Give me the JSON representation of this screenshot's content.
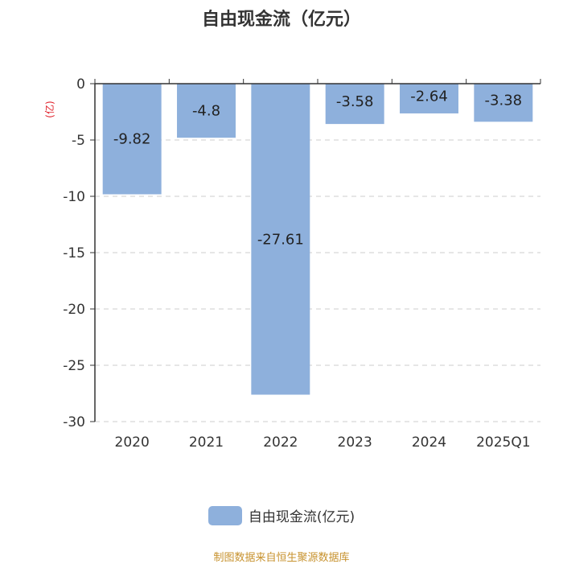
{
  "title": "自由现金流（亿元）",
  "colors": {
    "bar": "#8eb0dc",
    "unit_label": "#e0202a",
    "source": "#c7922e",
    "axis": "#333333",
    "grid": "#cccccc"
  },
  "legend": {
    "label": "自由现金流(亿元)"
  },
  "source": "制图数据来自恒生聚源数据库",
  "chart_data": {
    "type": "bar",
    "title": "自由现金流（亿元）",
    "ylabel": "(亿)",
    "xlabel": "",
    "categories": [
      "2020",
      "2021",
      "2022",
      "2023",
      "2024",
      "2025Q1"
    ],
    "series": [
      {
        "name": "自由现金流(亿元)",
        "values": [
          -9.82,
          -4.8,
          -27.61,
          -3.58,
          -2.64,
          -3.38
        ]
      }
    ],
    "ylim": [
      -30,
      0
    ],
    "yticks": [
      0,
      -5,
      -10,
      -15,
      -20,
      -25,
      -30
    ],
    "grid": true,
    "legend_position": "bottom"
  }
}
